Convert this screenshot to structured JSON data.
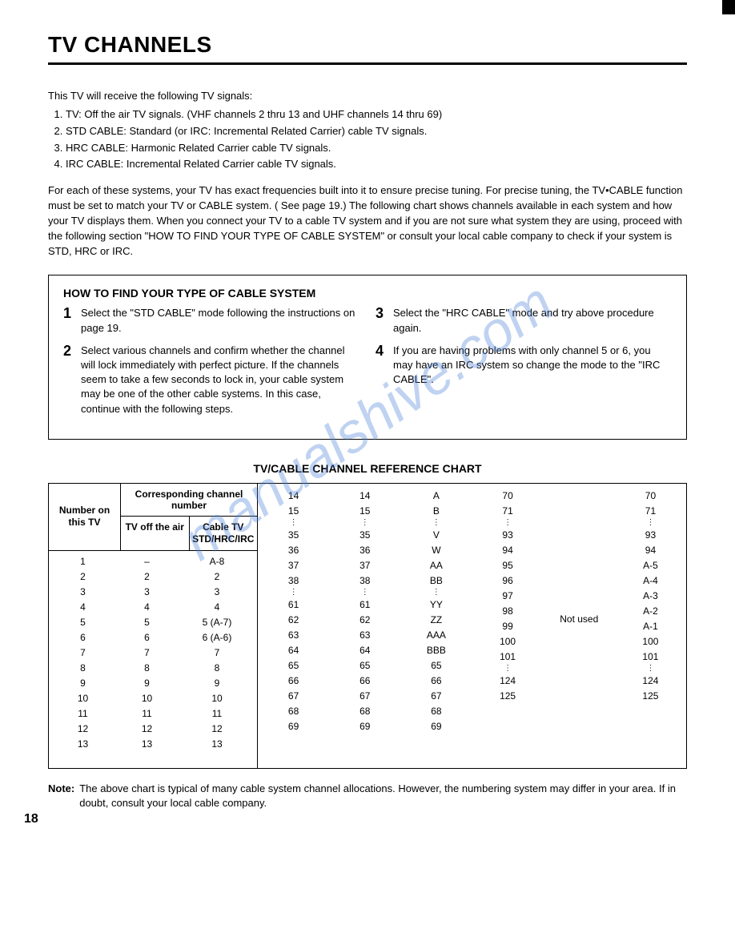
{
  "title": "TV CHANNELS",
  "intro_lead": "This TV will receive the following TV signals:",
  "intro_items": [
    "TV: Off the air TV signals. (VHF channels 2 thru 13 and UHF channels 14 thru 69)",
    "STD CABLE: Standard (or IRC: Incremental Related Carrier) cable TV signals.",
    "HRC CABLE: Harmonic Related Carrier cable TV signals.",
    "IRC CABLE: Incremental Related Carrier cable TV signals."
  ],
  "paragraph": "For each of these systems, your TV has exact frequencies built into it to ensure precise tuning. For precise tuning, the TV•CABLE function must be set to match your TV or CABLE system. ( See page 19.) The following chart shows channels available in each system and how your TV displays them. When you connect your TV to a cable TV system and if you are not sure what system they are using, proceed with the following section \"HOW TO FIND YOUR TYPE OF CABLE SYSTEM\" or consult your local cable company to check if your system is STD, HRC or IRC.",
  "howto": {
    "title": "HOW TO FIND YOUR TYPE OF CABLE SYSTEM",
    "steps_left": [
      "Select the \"STD CABLE\" mode following the instructions on page 19.",
      "Select various channels and confirm whether the channel will lock immediately with perfect picture. If the channels seem to take a few seconds to lock in, your cable system may be one of the other cable systems. In this case, continue with the following steps."
    ],
    "steps_right": [
      "Select the \"HRC CABLE\" mode and try above procedure again.",
      "If you are having problems with only channel 5 or 6, you may have an IRC system so change the mode to the \"IRC CABLE\"."
    ]
  },
  "chart_title": "TV/CABLE CHANNEL REFERENCE CHART",
  "headers": {
    "col1": "Number on this TV",
    "corr": "Corresponding channel number",
    "sub1": "TV off the air",
    "sub2": "Cable TV STD/HRC/IRC"
  },
  "left_rows": [
    {
      "n": "1",
      "a": "–",
      "b": "A-8"
    },
    {
      "n": "2",
      "a": "2",
      "b": "2"
    },
    {
      "n": "3",
      "a": "3",
      "b": "3"
    },
    {
      "n": "4",
      "a": "4",
      "b": "4"
    },
    {
      "n": "5",
      "a": "5",
      "b": "5 (A-7)"
    },
    {
      "n": "6",
      "a": "6",
      "b": "6 (A-6)"
    },
    {
      "n": "7",
      "a": "7",
      "b": "7"
    },
    {
      "n": "8",
      "a": "8",
      "b": "8"
    },
    {
      "n": "9",
      "a": "9",
      "b": "9"
    },
    {
      "n": "10",
      "a": "10",
      "b": "10"
    },
    {
      "n": "11",
      "a": "11",
      "b": "11"
    },
    {
      "n": "12",
      "a": "12",
      "b": "12"
    },
    {
      "n": "13",
      "a": "13",
      "b": "13"
    }
  ],
  "col_a": [
    "14",
    "15",
    "⋮",
    "35",
    "36",
    "37",
    "38",
    "⋮",
    "61",
    "62",
    "63",
    "64",
    "65",
    "66",
    "67",
    "68",
    "69"
  ],
  "col_b": [
    "14",
    "15",
    "⋮",
    "35",
    "36",
    "37",
    "38",
    "⋮",
    "61",
    "62",
    "63",
    "64",
    "65",
    "66",
    "67",
    "68",
    "69"
  ],
  "col_c": [
    "A",
    "B",
    "⋮",
    "V",
    "W",
    "AA",
    "BB",
    "⋮",
    "YY",
    "ZZ",
    "AAA",
    "BBB",
    "65",
    "66",
    "67",
    "68",
    "69"
  ],
  "col_d": [
    "70",
    "71",
    "⋮",
    "93",
    "94",
    "95",
    "96",
    "97",
    "98",
    "99",
    "100",
    "101",
    "⋮",
    "124",
    "125"
  ],
  "col_e": [
    "",
    "",
    "",
    "",
    "",
    "",
    "",
    "Not used"
  ],
  "col_f": [
    "70",
    "71",
    "⋮",
    "93",
    "94",
    "A-5",
    "A-4",
    "A-3",
    "A-2",
    "A-1",
    "100",
    "101",
    "⋮",
    "124",
    "125"
  ],
  "note_label": "Note:",
  "note_text": "The above chart is typical of many cable system channel allocations. However, the numbering system may differ in your area. If in doubt, consult your local cable company.",
  "page_number": "18",
  "watermark": "manualshive.com",
  "dots_char": "⋮"
}
